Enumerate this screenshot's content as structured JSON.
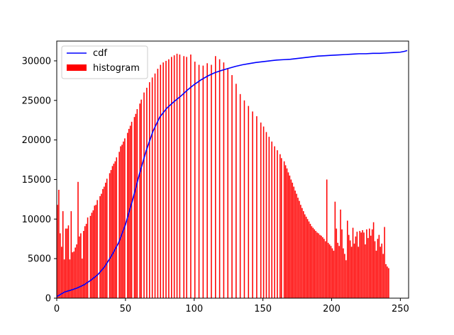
{
  "chart_data": {
    "type": "bar",
    "title": "",
    "xlabel": "",
    "ylabel": "",
    "xlim": [
      0,
      256
    ],
    "ylim": [
      0,
      32500
    ],
    "grid": false,
    "legend_position": "top-left",
    "x_ticks": [
      0,
      50,
      100,
      150,
      200,
      250
    ],
    "y_ticks": [
      0,
      5000,
      10000,
      15000,
      20000,
      25000,
      30000
    ],
    "series": [
      {
        "name": "histogram",
        "kind": "bar",
        "color": "#ff0000",
        "note_bins": "one bar per intensity level 0..255",
        "x_start": 0,
        "values": [
          11800,
          13700,
          8200,
          6500,
          11000,
          4900,
          8800,
          8800,
          9200,
          4900,
          11000,
          5800,
          5900,
          6400,
          6800,
          14700,
          7800,
          8200,
          5000,
          8500,
          9100,
          9400,
          10200,
          0,
          10400,
          10800,
          11100,
          11700,
          11800,
          12400,
          0,
          12900,
          13200,
          13800,
          14100,
          14600,
          15100,
          0,
          15800,
          16200,
          16700,
          17000,
          17300,
          17800,
          0,
          18500,
          19200,
          19400,
          19800,
          20200,
          0,
          20900,
          21400,
          21800,
          22300,
          0,
          22900,
          23300,
          23900,
          0,
          24600,
          25100,
          0,
          26000,
          0,
          26600,
          0,
          27300,
          0,
          27900,
          0,
          28400,
          0,
          29000,
          0,
          29500,
          0,
          29800,
          0,
          30000,
          0,
          30200,
          0,
          30500,
          0,
          30700,
          0,
          30900,
          0,
          30800,
          0,
          0,
          30600,
          0,
          30500,
          0,
          0,
          30800,
          0,
          0,
          29900,
          0,
          0,
          29500,
          0,
          0,
          29400,
          0,
          0,
          29700,
          0,
          0,
          29500,
          0,
          0,
          30600,
          0,
          0,
          30200,
          0,
          0,
          29800,
          0,
          0,
          29100,
          0,
          0,
          28200,
          0,
          0,
          27100,
          0,
          0,
          25800,
          0,
          0,
          25000,
          0,
          0,
          24300,
          0,
          0,
          23600,
          0,
          0,
          23000,
          0,
          0,
          22200,
          0,
          21700,
          0,
          21000,
          0,
          20400,
          0,
          19800,
          0,
          19200,
          0,
          18700,
          0,
          18200,
          17700,
          0,
          17300,
          16800,
          16400,
          15900,
          15500,
          15000,
          14600,
          14100,
          13600,
          13200,
          12700,
          12300,
          11800,
          11400,
          11000,
          10600,
          10300,
          10000,
          9700,
          9400,
          9100,
          8900,
          8700,
          8500,
          8300,
          8200,
          8000,
          7900,
          7700,
          7500,
          7200,
          15000,
          7000,
          6800,
          6600,
          6300,
          6000,
          12200,
          8800,
          7000,
          6600,
          11200,
          8700,
          6300,
          5600,
          4800,
          9800,
          8000,
          7300,
          6500,
          8900,
          6900,
          7800,
          8400,
          6500,
          8500,
          8300,
          8600,
          8300,
          6800,
          8700,
          7600,
          8800,
          7900,
          8700,
          9600,
          7200,
          6000,
          7500,
          8000,
          6500,
          6900,
          5600,
          9000,
          4300,
          4000,
          3800
        ]
      },
      {
        "name": "cdf",
        "kind": "line",
        "color": "#0000ff",
        "x": [
          0,
          3,
          6,
          10,
          15,
          20,
          25,
          30,
          35,
          40,
          45,
          50,
          55,
          60,
          65,
          70,
          75,
          80,
          85,
          90,
          95,
          100,
          105,
          110,
          115,
          120,
          125,
          130,
          135,
          140,
          145,
          150,
          155,
          160,
          165,
          170,
          175,
          180,
          185,
          190,
          195,
          200,
          205,
          210,
          215,
          220,
          225,
          230,
          235,
          240,
          245,
          250,
          253,
          255
        ],
        "y": [
          200,
          500,
          800,
          1000,
          1300,
          1700,
          2300,
          3000,
          4000,
          5400,
          7000,
          9300,
          12300,
          15600,
          18600,
          21100,
          22900,
          24000,
          24800,
          25500,
          26300,
          27000,
          27600,
          28100,
          28500,
          28800,
          29050,
          29300,
          29500,
          29650,
          29800,
          29900,
          30000,
          30100,
          30150,
          30200,
          30300,
          30400,
          30500,
          30600,
          30650,
          30700,
          30750,
          30800,
          30850,
          30900,
          30900,
          30950,
          30950,
          31000,
          31050,
          31100,
          31200,
          31300
        ]
      }
    ]
  }
}
